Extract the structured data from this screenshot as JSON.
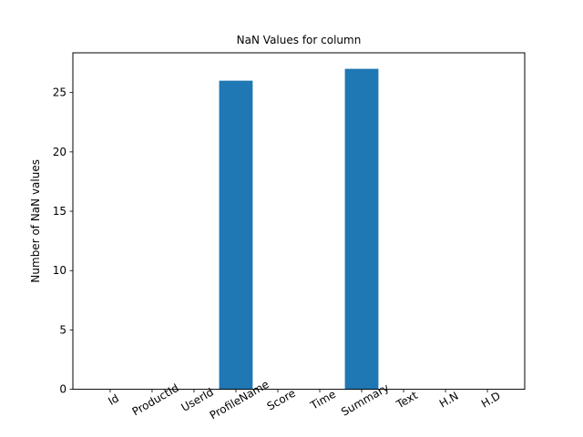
{
  "chart_data": {
    "type": "bar",
    "title": "NaN Values for column",
    "xlabel": "",
    "ylabel": "Number of NaN values",
    "categories": [
      "Id",
      "ProductId",
      "UserId",
      "ProfileName",
      "Score",
      "Time",
      "Summary",
      "Text",
      "H.N",
      "H.D"
    ],
    "values": [
      0,
      0,
      0,
      26,
      0,
      0,
      27,
      0,
      0,
      0
    ],
    "ylim": [
      0,
      28.35
    ],
    "yticks": [
      0,
      5,
      10,
      15,
      20,
      25
    ],
    "bar_color": "#1f77b4",
    "grid": false,
    "legend": "none",
    "xtick_rotation": 30
  }
}
